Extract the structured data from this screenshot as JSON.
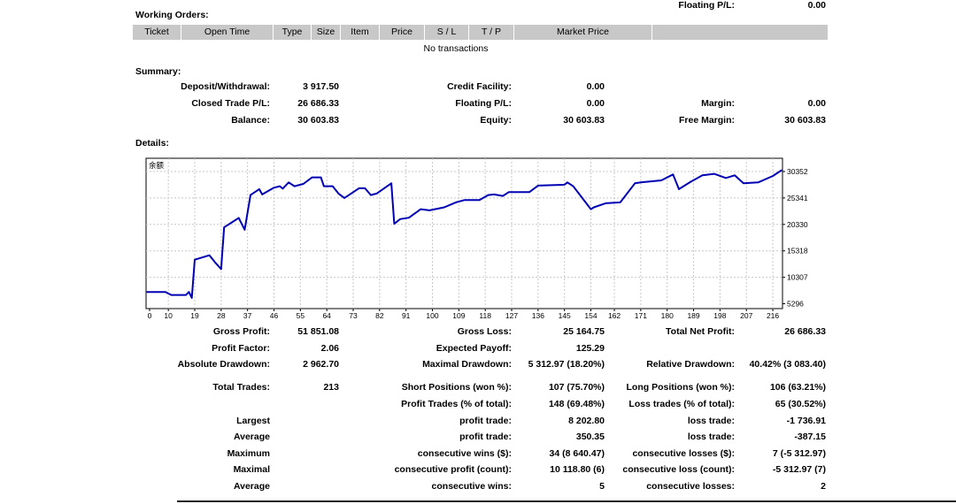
{
  "top_partial": {
    "label": "Floating P/L:",
    "value": "0.00"
  },
  "working_orders": {
    "title": "Working Orders:",
    "columns": [
      "Ticket",
      "Open Time",
      "Type",
      "Size",
      "Item",
      "Price",
      "S / L",
      "T / P",
      "Market Price",
      ""
    ],
    "empty_text": "No transactions"
  },
  "summary": {
    "title": "Summary:",
    "rows": [
      [
        {
          "label": "Deposit/Withdrawal:",
          "value": "3 917.50"
        },
        {
          "label": "Credit Facility:",
          "value": "0.00"
        },
        {
          "label": "",
          "value": ""
        }
      ],
      [
        {
          "label": "Closed Trade P/L:",
          "value": "26 686.33"
        },
        {
          "label": "Floating P/L:",
          "value": "0.00"
        },
        {
          "label": "Margin:",
          "value": "0.00"
        }
      ],
      [
        {
          "label": "Balance:",
          "value": "30 603.83"
        },
        {
          "label": "Equity:",
          "value": "30 603.83"
        },
        {
          "label": "Free Margin:",
          "value": "30 603.83"
        }
      ]
    ]
  },
  "details": {
    "title": "Details:",
    "rows": [
      [
        {
          "label": "Gross Profit:",
          "value": "51 851.08"
        },
        {
          "label": "Gross Loss:",
          "value": "25 164.75"
        },
        {
          "label": "Total Net Profit:",
          "value": "26 686.33"
        }
      ],
      [
        {
          "label": "Profit Factor:",
          "value": "2.06"
        },
        {
          "label": "Expected Payoff:",
          "value": "125.29"
        },
        {
          "label": "",
          "value": ""
        }
      ],
      [
        {
          "label": "Absolute Drawdown:",
          "value": "2 962.70"
        },
        {
          "label": "Maximal Drawdown:",
          "value": "5 312.97 (18.20%)"
        },
        {
          "label": "Relative Drawdown:",
          "value": "40.42% (3 083.40)"
        }
      ],
      [
        {
          "label": "Total Trades:",
          "value": "213"
        },
        {
          "label": "Short Positions (won %):",
          "value": "107 (75.70%)"
        },
        {
          "label": "Long Positions (won %):",
          "value": "106 (63.21%)"
        }
      ],
      [
        {
          "label": "",
          "value": ""
        },
        {
          "label": "Profit Trades (% of total):",
          "value": "148 (69.48%)"
        },
        {
          "label": "Loss trades (% of total):",
          "value": "65 (30.52%)"
        }
      ],
      [
        {
          "label": "Largest",
          "value": ""
        },
        {
          "label": "profit trade:",
          "value": "8 202.80"
        },
        {
          "label": "loss trade:",
          "value": "-1 736.91"
        }
      ],
      [
        {
          "label": "Average",
          "value": ""
        },
        {
          "label": "profit trade:",
          "value": "350.35"
        },
        {
          "label": "loss trade:",
          "value": "-387.15"
        }
      ],
      [
        {
          "label": "Maximum",
          "value": ""
        },
        {
          "label": "consecutive wins ($):",
          "value": "34 (8 640.47)"
        },
        {
          "label": "consecutive losses ($):",
          "value": "7 (-5 312.97)"
        }
      ],
      [
        {
          "label": "Maximal",
          "value": ""
        },
        {
          "label": "consecutive profit (count):",
          "value": "10 118.80 (6)"
        },
        {
          "label": "consecutive loss (count):",
          "value": "-5 312.97 (7)"
        }
      ],
      [
        {
          "label": "Average",
          "value": ""
        },
        {
          "label": "consecutive wins:",
          "value": "5"
        },
        {
          "label": "consecutive losses:",
          "value": "2"
        }
      ]
    ]
  },
  "chart_data": {
    "type": "line",
    "title": "余额",
    "line_color": "#0000b4",
    "grid": true,
    "x_ticks": [
      0,
      10,
      19,
      28,
      37,
      46,
      55,
      64,
      73,
      82,
      91,
      100,
      109,
      118,
      127,
      136,
      145,
      154,
      162,
      171,
      180,
      189,
      198,
      207,
      216
    ],
    "y_ticks": [
      5296,
      10307,
      15318,
      20330,
      25341,
      30352
    ],
    "ylim": [
      5296,
      30352
    ],
    "series": [
      {
        "x": [
          0,
          9,
          11,
          16,
          17,
          18,
          19,
          24,
          26,
          28,
          29,
          34,
          36,
          38,
          41,
          42,
          46,
          48,
          49,
          51,
          53,
          56,
          59,
          62,
          63,
          66,
          68,
          70,
          75,
          77,
          79,
          81,
          86,
          87,
          89,
          92,
          96,
          99,
          104,
          108,
          111,
          116,
          119,
          121,
          124,
          126,
          133,
          136,
          145,
          146,
          148,
          154,
          155,
          159,
          164,
          169,
          171,
          178,
          182,
          184,
          188,
          192,
          196,
          200,
          203,
          206,
          211,
          216,
          219
        ],
        "y": [
          7520,
          7520,
          6960,
          6960,
          7520,
          6410,
          13650,
          14480,
          13090,
          11870,
          19770,
          21560,
          19330,
          25900,
          27010,
          26010,
          27290,
          27570,
          27120,
          28290,
          27570,
          28010,
          29240,
          29240,
          27570,
          27570,
          26180,
          25340,
          27180,
          27180,
          25900,
          26180,
          28130,
          20440,
          21330,
          21610,
          23220,
          23000,
          23560,
          24510,
          24950,
          24950,
          25900,
          26010,
          25730,
          26450,
          26450,
          27680,
          27850,
          28290,
          27570,
          23220,
          23560,
          24340,
          24510,
          28130,
          28290,
          28680,
          29800,
          27010,
          28400,
          29630,
          29910,
          29130,
          29630,
          28130,
          28290,
          29520,
          30603
        ]
      }
    ]
  }
}
